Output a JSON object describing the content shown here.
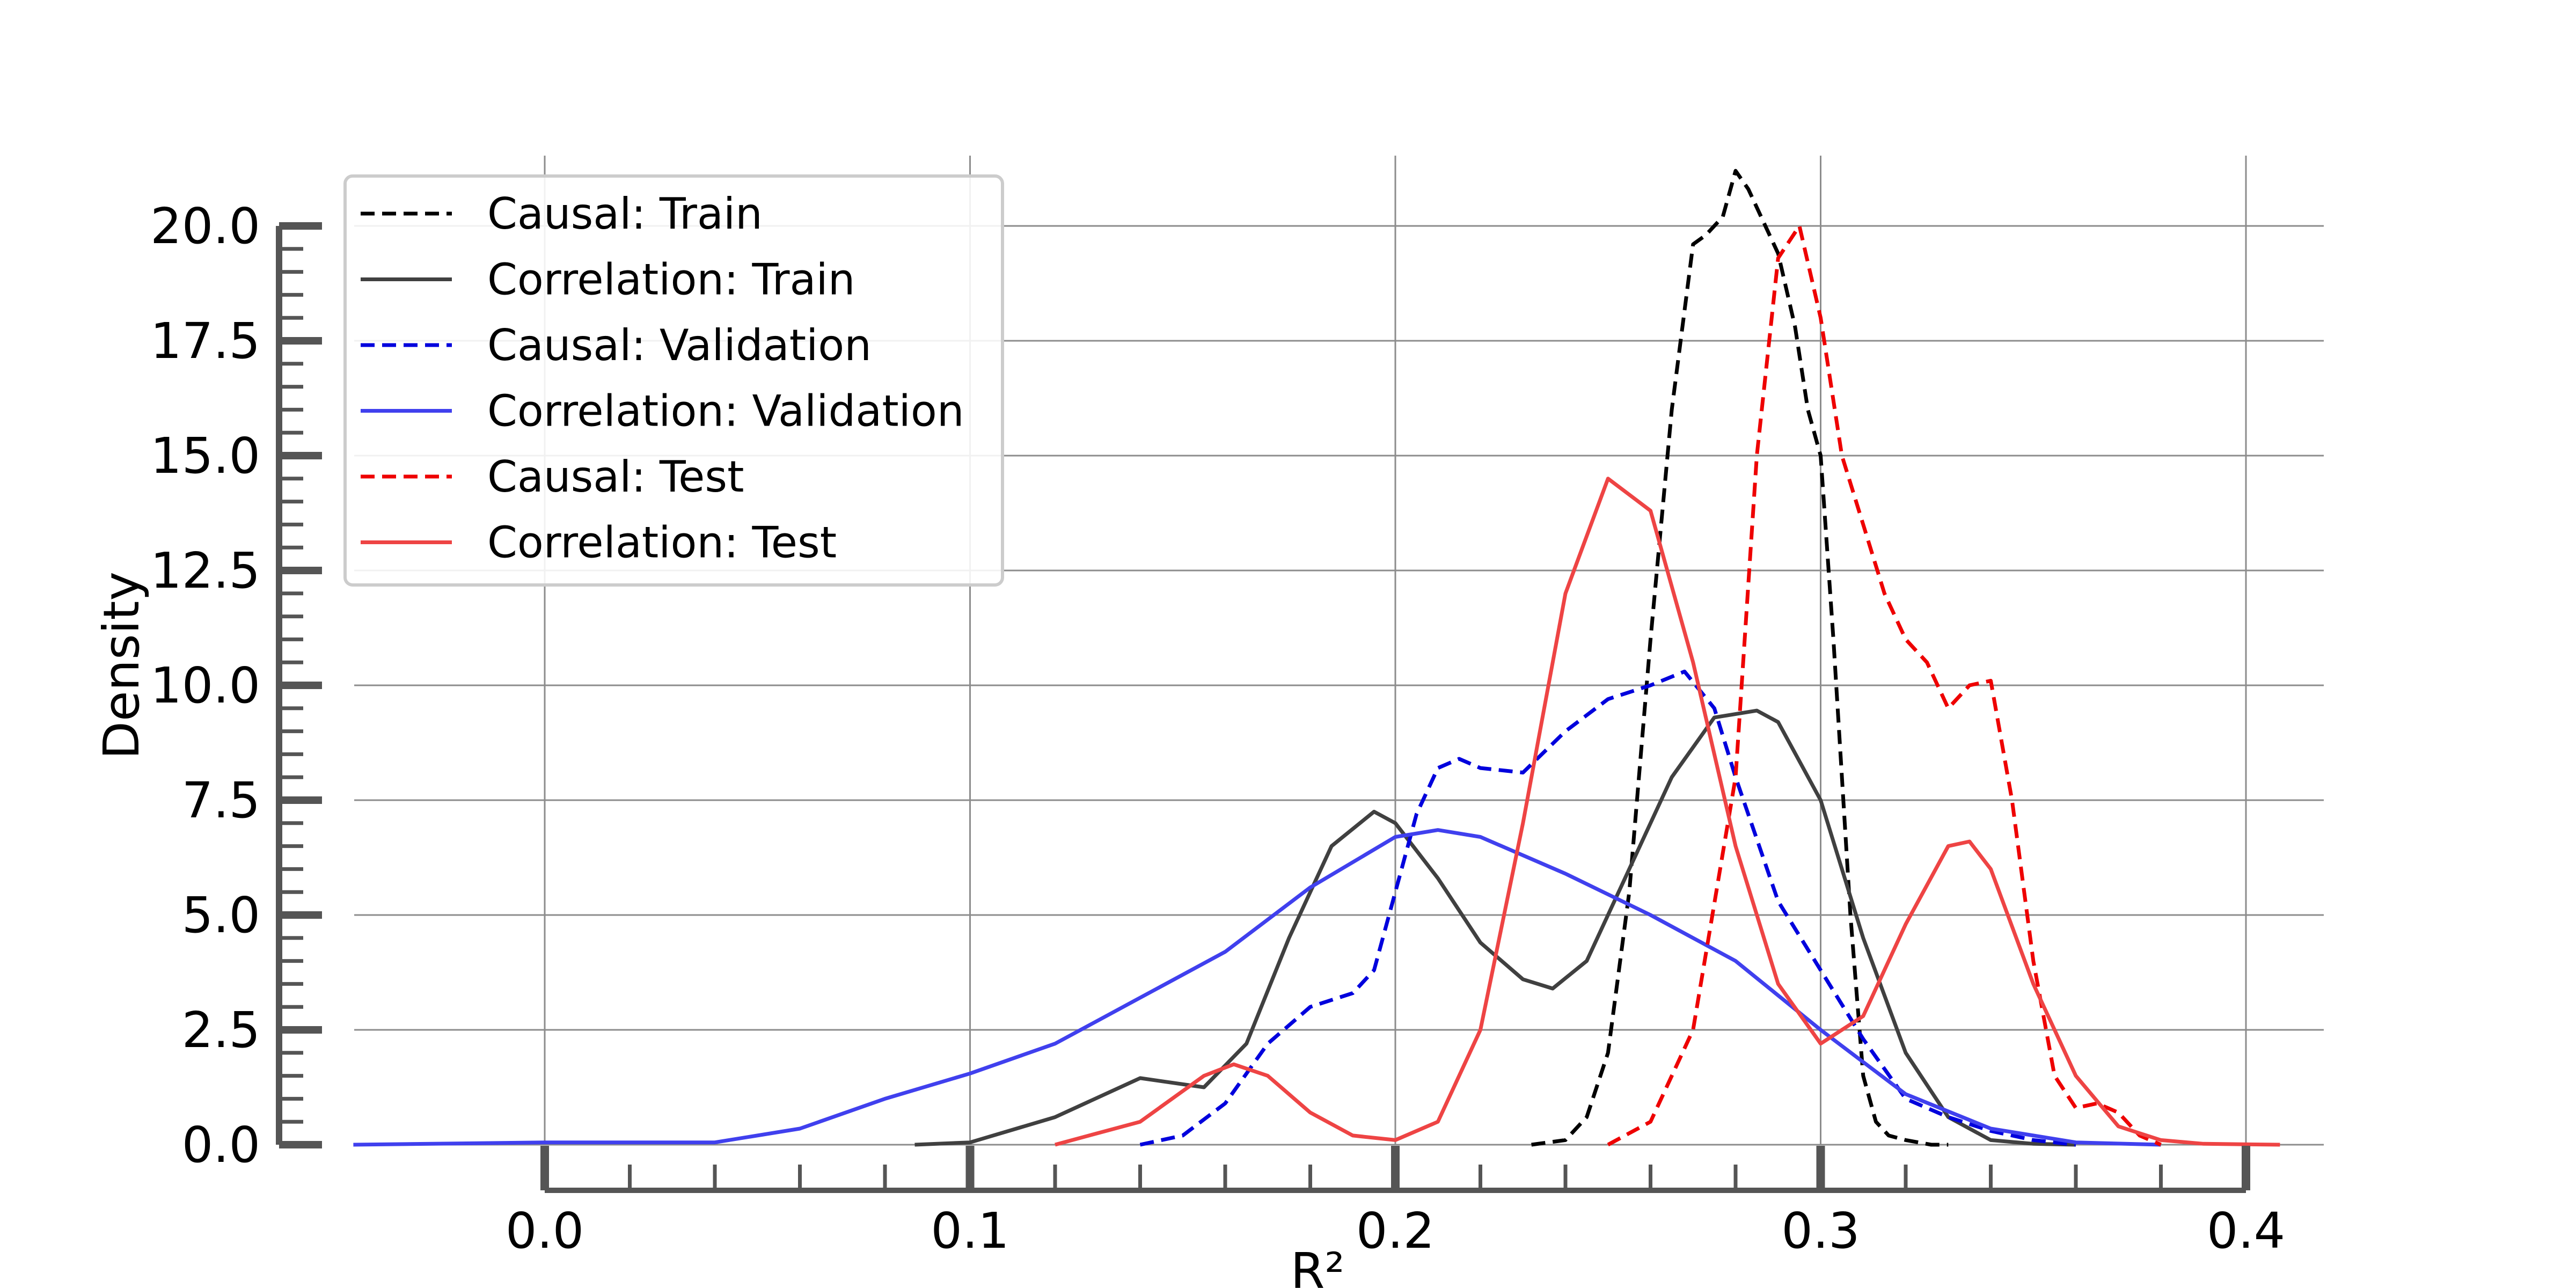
{
  "chart_data": {
    "type": "line",
    "xlabel": "R²",
    "ylabel": "Density",
    "xlim": [
      -0.05,
      0.41
    ],
    "ylim": [
      0,
      21.0
    ],
    "x_ticks": [
      "0.0",
      "0.1",
      "0.2",
      "0.3",
      "0.4"
    ],
    "y_ticks": [
      "0.0",
      "2.5",
      "5.0",
      "7.5",
      "10.0",
      "12.5",
      "15.0",
      "17.5",
      "20.0"
    ],
    "grid": true,
    "legend_position": "top-left",
    "series": [
      {
        "name": "Causal: Train",
        "color": "#000000",
        "dash": "dashed",
        "x": [
          0.232,
          0.24,
          0.245,
          0.25,
          0.255,
          0.26,
          0.265,
          0.27,
          0.273,
          0.277,
          0.28,
          0.283,
          0.287,
          0.29,
          0.294,
          0.297,
          0.3,
          0.303,
          0.307,
          0.31,
          0.313,
          0.316,
          0.32,
          0.326,
          0.33
        ],
        "y": [
          0.0,
          0.1,
          0.6,
          2.0,
          5.5,
          11.0,
          16.0,
          19.6,
          19.8,
          20.2,
          21.2,
          20.8,
          20.0,
          19.4,
          17.8,
          16.0,
          15.0,
          11.0,
          5.0,
          1.5,
          0.5,
          0.2,
          0.1,
          0.0,
          0.0
        ]
      },
      {
        "name": "Correlation: Train",
        "color": "#404040",
        "dash": "solid",
        "x": [
          0.087,
          0.1,
          0.12,
          0.14,
          0.155,
          0.165,
          0.175,
          0.185,
          0.195,
          0.2,
          0.21,
          0.22,
          0.23,
          0.237,
          0.245,
          0.255,
          0.265,
          0.275,
          0.285,
          0.29,
          0.3,
          0.31,
          0.32,
          0.33,
          0.34,
          0.35,
          0.36
        ],
        "y": [
          0.0,
          0.05,
          0.6,
          1.45,
          1.25,
          2.2,
          4.5,
          6.5,
          7.25,
          7.0,
          5.8,
          4.4,
          3.6,
          3.4,
          4.0,
          6.0,
          8.0,
          9.3,
          9.45,
          9.2,
          7.5,
          4.5,
          2.0,
          0.6,
          0.1,
          0.02,
          0.0
        ]
      },
      {
        "name": "Causal: Validation",
        "color": "#0000dd",
        "dash": "dashed",
        "x": [
          0.14,
          0.15,
          0.16,
          0.17,
          0.18,
          0.19,
          0.195,
          0.2,
          0.205,
          0.21,
          0.215,
          0.22,
          0.23,
          0.24,
          0.25,
          0.26,
          0.268,
          0.275,
          0.28,
          0.29,
          0.3,
          0.31,
          0.32,
          0.33,
          0.34,
          0.35,
          0.36
        ],
        "y": [
          0.0,
          0.2,
          0.9,
          2.2,
          3.0,
          3.3,
          3.8,
          5.5,
          7.2,
          8.2,
          8.4,
          8.2,
          8.1,
          9.0,
          9.7,
          10.0,
          10.3,
          9.5,
          8.0,
          5.3,
          3.8,
          2.3,
          1.0,
          0.6,
          0.3,
          0.1,
          0.0
        ]
      },
      {
        "name": "Correlation: Validation",
        "color": "#4040ee",
        "dash": "solid",
        "x": [
          -0.045,
          0.0,
          0.04,
          0.06,
          0.08,
          0.1,
          0.12,
          0.14,
          0.16,
          0.18,
          0.2,
          0.21,
          0.22,
          0.24,
          0.26,
          0.28,
          0.3,
          0.32,
          0.34,
          0.36,
          0.38
        ],
        "y": [
          0.0,
          0.05,
          0.05,
          0.35,
          1.0,
          1.55,
          2.2,
          3.2,
          4.2,
          5.6,
          6.7,
          6.85,
          6.7,
          5.9,
          5.0,
          4.0,
          2.5,
          1.1,
          0.35,
          0.05,
          0.0
        ]
      },
      {
        "name": "Causal: Test",
        "color": "#ee0000",
        "dash": "dashed",
        "x": [
          0.25,
          0.26,
          0.27,
          0.28,
          0.285,
          0.29,
          0.295,
          0.3,
          0.305,
          0.31,
          0.315,
          0.32,
          0.325,
          0.33,
          0.335,
          0.34,
          0.345,
          0.35,
          0.355,
          0.36,
          0.365,
          0.37,
          0.375,
          0.38
        ],
        "y": [
          0.0,
          0.5,
          2.5,
          8.0,
          15.0,
          19.3,
          20.0,
          18.0,
          15.0,
          13.5,
          12.0,
          11.0,
          10.5,
          9.5,
          10.0,
          10.1,
          7.5,
          4.0,
          1.5,
          0.8,
          0.9,
          0.7,
          0.2,
          0.0
        ]
      },
      {
        "name": "Correlation: Test",
        "color": "#ee4444",
        "dash": "solid",
        "x": [
          0.12,
          0.14,
          0.155,
          0.162,
          0.17,
          0.18,
          0.19,
          0.2,
          0.21,
          0.22,
          0.23,
          0.24,
          0.25,
          0.26,
          0.27,
          0.28,
          0.29,
          0.3,
          0.31,
          0.32,
          0.33,
          0.335,
          0.34,
          0.35,
          0.36,
          0.37,
          0.38,
          0.39,
          0.408
        ],
        "y": [
          0.0,
          0.5,
          1.5,
          1.75,
          1.5,
          0.7,
          0.2,
          0.1,
          0.5,
          2.5,
          7.0,
          12.0,
          14.5,
          13.8,
          10.5,
          6.5,
          3.5,
          2.2,
          2.8,
          4.8,
          6.5,
          6.6,
          6.0,
          3.5,
          1.5,
          0.4,
          0.1,
          0.02,
          0.0
        ]
      }
    ]
  }
}
